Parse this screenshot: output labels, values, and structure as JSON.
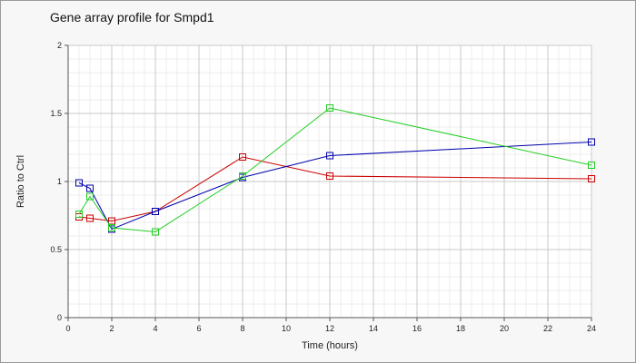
{
  "chart_data": {
    "type": "line",
    "title": "Gene array profile for Smpd1",
    "xlabel": "Time (hours)",
    "ylabel": "Ratio to Ctrl",
    "xlim": [
      0,
      24
    ],
    "ylim": [
      0,
      2
    ],
    "xticks": [
      0,
      2,
      4,
      6,
      8,
      10,
      12,
      14,
      16,
      18,
      20,
      22,
      24
    ],
    "yticks": [
      0,
      0.5,
      1,
      1.5,
      2
    ],
    "ytick_labels": [
      "0",
      "0.5",
      "1",
      "1.5",
      "2"
    ],
    "grid": true,
    "legend": "none",
    "series": [
      {
        "color": "#cc0000",
        "x": [
          0.5,
          1,
          2,
          4,
          8,
          12,
          24
        ],
        "y": [
          0.74,
          0.73,
          0.71,
          0.78,
          1.18,
          1.04,
          1.02
        ]
      },
      {
        "color": "#0000aa",
        "x": [
          0.5,
          1,
          2,
          4,
          8,
          12,
          24
        ],
        "y": [
          0.99,
          0.95,
          0.65,
          0.78,
          1.03,
          1.19,
          1.29
        ]
      },
      {
        "color": "#22cc22",
        "x": [
          0.5,
          1,
          2,
          4,
          8,
          12,
          24
        ],
        "y": [
          0.76,
          0.89,
          0.66,
          0.63,
          1.04,
          1.54,
          1.12
        ]
      }
    ]
  }
}
